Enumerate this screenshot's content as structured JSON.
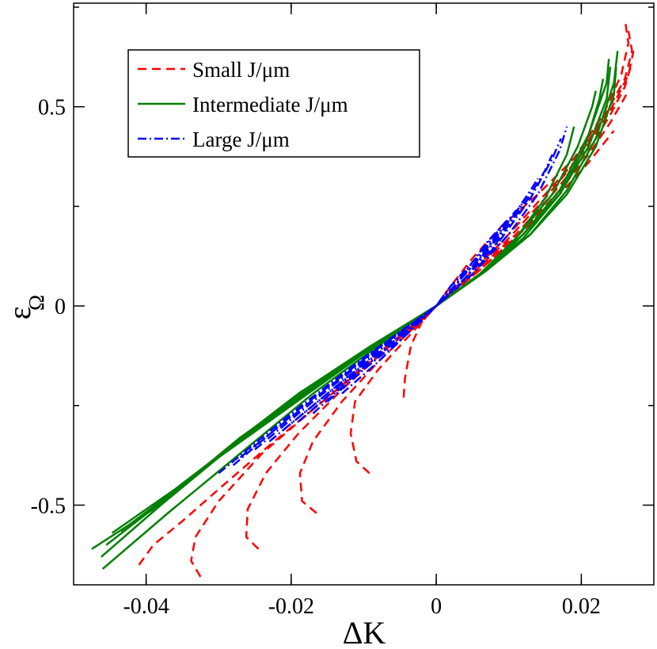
{
  "chart_data": {
    "type": "line",
    "title": "",
    "xlabel": "ΔK",
    "ylabel": "ε",
    "ylabel_subscript": "Ω",
    "xlim": [
      -0.05,
      0.03
    ],
    "ylim": [
      -0.7,
      0.76
    ],
    "xticks": [
      -0.04,
      -0.02,
      0,
      0.02
    ],
    "xtick_labels": [
      "-0.04",
      "-0.02",
      "0",
      "0.02"
    ],
    "yticks": [
      -0.5,
      0,
      0.5
    ],
    "ytick_labels": [
      "-0.5",
      "0",
      "0.5"
    ],
    "grid": false,
    "legend_position": "top-left",
    "legend": [
      {
        "label": "Small J/μm",
        "color": "#ff0000",
        "style": "dashed"
      },
      {
        "label": "Intermediate J/μm",
        "color": "#008000",
        "style": "solid"
      },
      {
        "label": "Large J/μm",
        "color": "#0000ff",
        "style": "dashdot"
      }
    ],
    "series": [
      {
        "name": "Small J/μm",
        "color": "#ff0000",
        "style": "dashed",
        "points": [
          [
            -0.0045,
            -0.23
          ],
          [
            -0.0043,
            -0.18
          ],
          [
            -0.0035,
            -0.1
          ],
          [
            -0.002,
            -0.04
          ],
          [
            0,
            0
          ],
          [
            0.002,
            0.05
          ],
          [
            0.005,
            0.12
          ],
          [
            0.009,
            0.2
          ],
          [
            0.014,
            0.28
          ],
          [
            0.019,
            0.37
          ],
          [
            0.023,
            0.48
          ],
          [
            0.0255,
            0.58
          ],
          [
            0.0265,
            0.66
          ],
          [
            0.026,
            0.72
          ]
        ]
      },
      {
        "name": "Small J/μm",
        "color": "#ff0000",
        "style": "dashed",
        "points": [
          [
            -0.0092,
            -0.42
          ],
          [
            -0.011,
            -0.39
          ],
          [
            -0.0118,
            -0.32
          ],
          [
            -0.0112,
            -0.24
          ],
          [
            -0.008,
            -0.16
          ],
          [
            -0.004,
            -0.08
          ],
          [
            0,
            0
          ],
          [
            0.004,
            0.07
          ],
          [
            0.009,
            0.16
          ],
          [
            0.014,
            0.26
          ],
          [
            0.019,
            0.36
          ],
          [
            0.023,
            0.47
          ],
          [
            0.026,
            0.57
          ],
          [
            0.027,
            0.64
          ],
          [
            0.0265,
            0.69
          ]
        ]
      },
      {
        "name": "Small J/μm",
        "color": "#ff0000",
        "style": "dashed",
        "points": [
          [
            -0.0165,
            -0.52
          ],
          [
            -0.0185,
            -0.49
          ],
          [
            -0.0188,
            -0.42
          ],
          [
            -0.017,
            -0.34
          ],
          [
            -0.013,
            -0.24
          ],
          [
            -0.008,
            -0.14
          ],
          [
            -0.004,
            -0.07
          ],
          [
            0,
            0
          ],
          [
            0.005,
            0.08
          ],
          [
            0.01,
            0.17
          ],
          [
            0.015,
            0.27
          ],
          [
            0.02,
            0.38
          ],
          [
            0.024,
            0.49
          ],
          [
            0.0265,
            0.58
          ],
          [
            0.0272,
            0.64
          ]
        ]
      },
      {
        "name": "Small J/μm",
        "color": "#ff0000",
        "style": "dashed",
        "points": [
          [
            -0.0245,
            -0.61
          ],
          [
            -0.0262,
            -0.58
          ],
          [
            -0.026,
            -0.51
          ],
          [
            -0.0235,
            -0.42
          ],
          [
            -0.019,
            -0.32
          ],
          [
            -0.013,
            -0.21
          ],
          [
            -0.007,
            -0.11
          ],
          [
            0,
            0
          ],
          [
            0.005,
            0.08
          ],
          [
            0.011,
            0.18
          ],
          [
            0.016,
            0.28
          ],
          [
            0.021,
            0.39
          ],
          [
            0.024,
            0.48
          ],
          [
            0.026,
            0.55
          ],
          [
            0.0268,
            0.6
          ]
        ]
      },
      {
        "name": "Small J/μm",
        "color": "#ff0000",
        "style": "dashed",
        "points": [
          [
            -0.0325,
            -0.68
          ],
          [
            -0.0338,
            -0.64
          ],
          [
            -0.0332,
            -0.58
          ],
          [
            -0.03,
            -0.49
          ],
          [
            -0.024,
            -0.37
          ],
          [
            -0.017,
            -0.26
          ],
          [
            -0.009,
            -0.14
          ],
          [
            0,
            0
          ],
          [
            0.006,
            0.09
          ],
          [
            0.012,
            0.19
          ],
          [
            0.017,
            0.29
          ],
          [
            0.021,
            0.38
          ],
          [
            0.024,
            0.46
          ],
          [
            0.0262,
            0.53
          ]
        ]
      },
      {
        "name": "Small J/μm",
        "color": "#ff0000",
        "style": "dashed",
        "points": [
          [
            -0.041,
            -0.65
          ],
          [
            -0.039,
            -0.6
          ],
          [
            -0.035,
            -0.54
          ],
          [
            -0.03,
            -0.46
          ],
          [
            -0.023,
            -0.35
          ],
          [
            -0.015,
            -0.23
          ],
          [
            -0.008,
            -0.12
          ],
          [
            0,
            0
          ],
          [
            0.006,
            0.09
          ],
          [
            0.012,
            0.19
          ],
          [
            0.017,
            0.28
          ],
          [
            0.021,
            0.36
          ],
          [
            0.0245,
            0.44
          ]
        ]
      },
      {
        "name": "Intermediate J/μm",
        "color": "#008000",
        "style": "solid",
        "points": [
          [
            -0.0435,
            -0.565
          ],
          [
            -0.035,
            -0.45
          ],
          [
            -0.025,
            -0.31
          ],
          [
            -0.015,
            -0.18
          ],
          [
            -0.007,
            -0.08
          ],
          [
            0,
            0
          ],
          [
            0.007,
            0.09
          ],
          [
            0.013,
            0.18
          ],
          [
            0.018,
            0.28
          ],
          [
            0.022,
            0.4
          ],
          [
            0.0245,
            0.53
          ],
          [
            0.0248,
            0.6
          ]
        ]
      },
      {
        "name": "Intermediate J/μm",
        "color": "#008000",
        "style": "solid",
        "points": [
          [
            -0.0447,
            -0.57
          ],
          [
            -0.036,
            -0.46
          ],
          [
            -0.026,
            -0.32
          ],
          [
            -0.016,
            -0.19
          ],
          [
            -0.008,
            -0.09
          ],
          [
            0,
            0
          ],
          [
            0.007,
            0.09
          ],
          [
            0.013,
            0.18
          ],
          [
            0.018,
            0.29
          ],
          [
            0.022,
            0.42
          ],
          [
            0.0245,
            0.56
          ],
          [
            0.025,
            0.64
          ]
        ]
      },
      {
        "name": "Intermediate J/μm",
        "color": "#008000",
        "style": "solid",
        "points": [
          [
            -0.0455,
            -0.6
          ],
          [
            -0.037,
            -0.48
          ],
          [
            -0.027,
            -0.33
          ],
          [
            -0.017,
            -0.2
          ],
          [
            -0.008,
            -0.09
          ],
          [
            0,
            0
          ],
          [
            0.007,
            0.09
          ],
          [
            0.012,
            0.18
          ],
          [
            0.017,
            0.28
          ],
          [
            0.021,
            0.4
          ],
          [
            0.0235,
            0.52
          ],
          [
            0.024,
            0.6
          ]
        ]
      },
      {
        "name": "Intermediate J/μm",
        "color": "#008000",
        "style": "solid",
        "points": [
          [
            -0.0462,
            -0.63
          ],
          [
            -0.038,
            -0.5
          ],
          [
            -0.028,
            -0.35
          ],
          [
            -0.018,
            -0.21
          ],
          [
            -0.009,
            -0.1
          ],
          [
            0,
            0
          ],
          [
            0.006,
            0.08
          ],
          [
            0.012,
            0.18
          ],
          [
            0.017,
            0.29
          ],
          [
            0.021,
            0.43
          ],
          [
            0.0235,
            0.56
          ],
          [
            0.0238,
            0.62
          ]
        ]
      },
      {
        "name": "Intermediate J/μm",
        "color": "#008000",
        "style": "solid",
        "points": [
          [
            -0.0475,
            -0.61
          ],
          [
            -0.039,
            -0.51
          ],
          [
            -0.029,
            -0.36
          ],
          [
            -0.019,
            -0.22
          ],
          [
            -0.009,
            -0.1
          ],
          [
            0,
            0
          ],
          [
            0.006,
            0.08
          ],
          [
            0.012,
            0.17
          ],
          [
            0.017,
            0.28
          ],
          [
            0.0205,
            0.4
          ],
          [
            0.0225,
            0.52
          ],
          [
            0.023,
            0.57
          ]
        ]
      },
      {
        "name": "Intermediate J/μm",
        "color": "#008000",
        "style": "solid",
        "points": [
          [
            -0.046,
            -0.66
          ],
          [
            -0.037,
            -0.52
          ],
          [
            -0.027,
            -0.37
          ],
          [
            -0.017,
            -0.22
          ],
          [
            -0.008,
            -0.1
          ],
          [
            0,
            0
          ],
          [
            0.006,
            0.08
          ],
          [
            0.011,
            0.17
          ],
          [
            0.016,
            0.28
          ],
          [
            0.0195,
            0.4
          ],
          [
            0.0215,
            0.5
          ],
          [
            0.022,
            0.54
          ]
        ]
      },
      {
        "name": "Intermediate J/μm",
        "color": "#008000",
        "style": "solid",
        "points": [
          [
            -0.04,
            -0.52
          ],
          [
            -0.03,
            -0.38
          ],
          [
            -0.02,
            -0.25
          ],
          [
            -0.01,
            -0.12
          ],
          [
            0,
            0
          ],
          [
            0.006,
            0.08
          ],
          [
            0.011,
            0.17
          ],
          [
            0.015,
            0.27
          ],
          [
            0.018,
            0.38
          ],
          [
            0.019,
            0.45
          ]
        ]
      },
      {
        "name": "Large J/μm",
        "color": "#0000ff",
        "style": "dashdot",
        "points": [
          [
            -0.03,
            -0.42
          ],
          [
            -0.02,
            -0.27
          ],
          [
            -0.01,
            -0.13
          ],
          [
            0,
            0
          ],
          [
            0.005,
            0.08
          ],
          [
            0.01,
            0.18
          ],
          [
            0.014,
            0.28
          ],
          [
            0.017,
            0.39
          ],
          [
            0.018,
            0.45
          ]
        ]
      },
      {
        "name": "Large J/μm",
        "color": "#0000ff",
        "style": "dashdot",
        "points": [
          [
            -0.028,
            -0.4
          ],
          [
            -0.019,
            -0.26
          ],
          [
            -0.009,
            -0.12
          ],
          [
            0,
            0
          ],
          [
            0.005,
            0.08
          ],
          [
            0.009,
            0.17
          ],
          [
            0.013,
            0.27
          ],
          [
            0.016,
            0.37
          ],
          [
            0.0172,
            0.42
          ]
        ]
      },
      {
        "name": "Large J/μm",
        "color": "#0000ff",
        "style": "dashdot",
        "points": [
          [
            -0.027,
            -0.38
          ],
          [
            -0.018,
            -0.25
          ],
          [
            -0.009,
            -0.12
          ],
          [
            0,
            0
          ],
          [
            0.004,
            0.07
          ],
          [
            0.008,
            0.16
          ],
          [
            0.012,
            0.25
          ],
          [
            0.015,
            0.34
          ],
          [
            0.016,
            0.38
          ]
        ]
      },
      {
        "name": "Large J/μm",
        "color": "#0000ff",
        "style": "dashdot",
        "points": [
          [
            -0.025,
            -0.36
          ],
          [
            -0.017,
            -0.24
          ],
          [
            -0.008,
            -0.11
          ],
          [
            0,
            0
          ],
          [
            0.004,
            0.07
          ],
          [
            0.008,
            0.15
          ],
          [
            0.011,
            0.23
          ],
          [
            0.014,
            0.32
          ]
        ]
      },
      {
        "name": "Large J/μm",
        "color": "#0000ff",
        "style": "dashdot",
        "points": [
          [
            -0.023,
            -0.34
          ],
          [
            -0.015,
            -0.22
          ],
          [
            -0.007,
            -0.1
          ],
          [
            0,
            0
          ],
          [
            0.004,
            0.07
          ],
          [
            0.007,
            0.14
          ],
          [
            0.01,
            0.21
          ],
          [
            0.013,
            0.29
          ]
        ]
      },
      {
        "name": "Large J/μm",
        "color": "#0000ff",
        "style": "dashdot",
        "points": [
          [
            -0.021,
            -0.31
          ],
          [
            -0.013,
            -0.19
          ],
          [
            -0.006,
            -0.09
          ],
          [
            0,
            0
          ],
          [
            0.003,
            0.06
          ],
          [
            0.006,
            0.12
          ],
          [
            0.009,
            0.19
          ],
          [
            0.012,
            0.26
          ]
        ]
      },
      {
        "name": "Large J/μm",
        "color": "#0000ff",
        "style": "dashdot",
        "points": [
          [
            -0.019,
            -0.29
          ],
          [
            -0.012,
            -0.18
          ],
          [
            -0.005,
            -0.08
          ],
          [
            0,
            0
          ],
          [
            0.003,
            0.06
          ],
          [
            0.006,
            0.12
          ],
          [
            0.008,
            0.17
          ],
          [
            0.011,
            0.24
          ]
        ]
      },
      {
        "name": "Large J/μm",
        "color": "#0000ff",
        "style": "dashdot",
        "points": [
          [
            -0.017,
            -0.27
          ],
          [
            -0.011,
            -0.17
          ],
          [
            -0.005,
            -0.08
          ],
          [
            0,
            0
          ],
          [
            0.003,
            0.06
          ],
          [
            0.005,
            0.11
          ],
          [
            0.007,
            0.16
          ],
          [
            0.01,
            0.22
          ]
        ]
      },
      {
        "name": "Large J/μm",
        "color": "#0000ff",
        "style": "dashdot",
        "points": [
          [
            -0.015,
            -0.24
          ],
          [
            -0.01,
            -0.16
          ],
          [
            -0.004,
            -0.07
          ],
          [
            0,
            0
          ],
          [
            0.002,
            0.05
          ],
          [
            0.005,
            0.1
          ],
          [
            0.007,
            0.15
          ],
          [
            0.009,
            0.2
          ]
        ]
      },
      {
        "name": "Large J/μm",
        "color": "#0000ff",
        "style": "dashdot",
        "points": [
          [
            -0.013,
            -0.22
          ],
          [
            -0.008,
            -0.14
          ],
          [
            -0.004,
            -0.07
          ],
          [
            0,
            0
          ],
          [
            0.002,
            0.05
          ],
          [
            0.004,
            0.09
          ],
          [
            0.006,
            0.13
          ],
          [
            0.008,
            0.18
          ]
        ]
      }
    ]
  }
}
